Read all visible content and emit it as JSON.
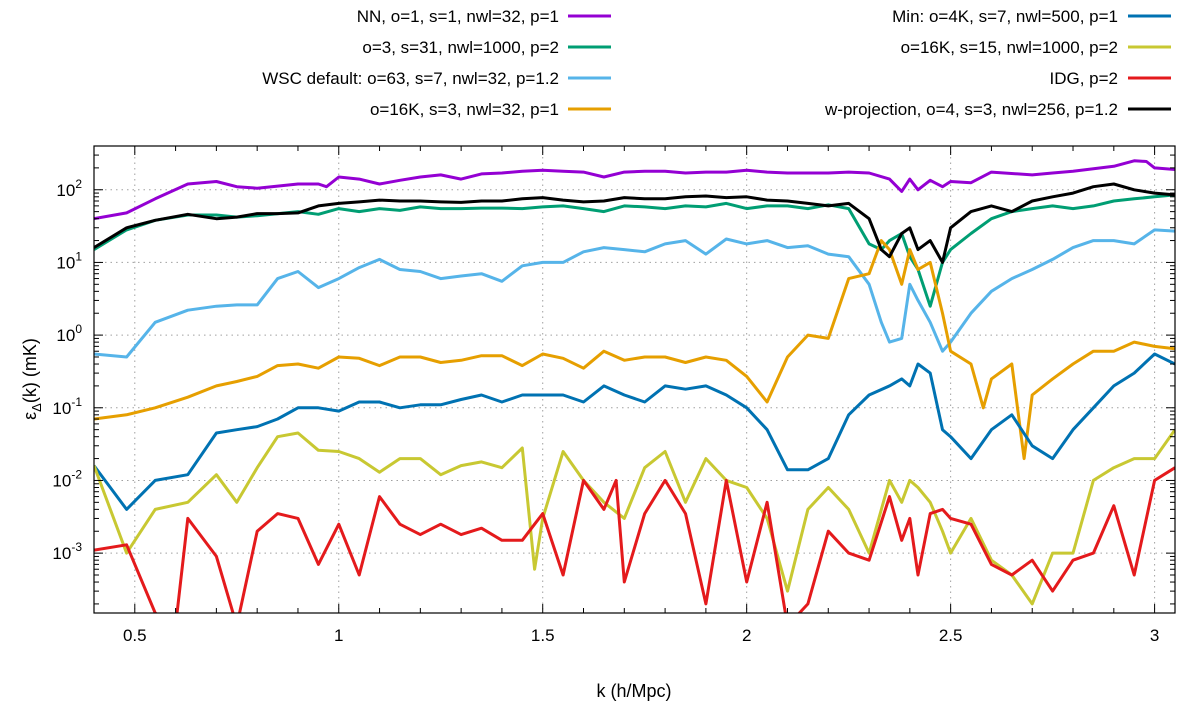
{
  "chart_data": {
    "type": "line",
    "xlabel": "k (h/Mpc)",
    "ylabel": "ε_Δ(k) (mK)",
    "ylabel_main": "ε",
    "ylabel_sub": "Δ",
    "ylabel_rest": "(k) (mK)",
    "xlim": [
      0.4,
      3.05
    ],
    "ylim": [
      0.00015,
      400
    ],
    "yscale": "log",
    "grid": true,
    "x_ticks": [
      0.5,
      1,
      1.5,
      2,
      2.5,
      3
    ],
    "x_tick_labels": [
      "0.5",
      "1",
      "1.5",
      "2",
      "2.5",
      "3"
    ],
    "y_ticks": [
      0.001,
      0.01,
      0.1,
      1,
      10,
      100
    ],
    "y_tick_labels": [
      {
        "base": "10",
        "exp": "-3"
      },
      {
        "base": "10",
        "exp": "-2"
      },
      {
        "base": "10",
        "exp": "-1"
      },
      {
        "base": "10",
        "exp": "0"
      },
      {
        "base": "10",
        "exp": "1"
      },
      {
        "base": "10",
        "exp": "2"
      }
    ],
    "series": [
      {
        "name": "NN, o=1, s=1, nwl=32, p=1",
        "color": "#9400d3",
        "x": [
          0.4,
          0.48,
          0.55,
          0.63,
          0.7,
          0.75,
          0.8,
          0.9,
          0.95,
          0.97,
          1.0,
          1.05,
          1.1,
          1.15,
          1.2,
          1.25,
          1.3,
          1.35,
          1.4,
          1.45,
          1.5,
          1.55,
          1.6,
          1.65,
          1.7,
          1.75,
          1.8,
          1.85,
          1.9,
          1.95,
          2.0,
          2.05,
          2.1,
          2.15,
          2.2,
          2.25,
          2.3,
          2.35,
          2.38,
          2.4,
          2.42,
          2.45,
          2.48,
          2.5,
          2.55,
          2.6,
          2.7,
          2.75,
          2.8,
          2.85,
          2.9,
          2.95,
          2.98,
          3.0,
          3.05
        ],
        "y": [
          40,
          48,
          75,
          120,
          130,
          110,
          105,
          120,
          120,
          110,
          150,
          140,
          120,
          135,
          150,
          160,
          140,
          165,
          170,
          180,
          185,
          180,
          175,
          150,
          175,
          180,
          180,
          170,
          175,
          175,
          185,
          175,
          170,
          170,
          170,
          175,
          170,
          140,
          95,
          140,
          100,
          135,
          110,
          130,
          125,
          175,
          160,
          170,
          180,
          195,
          210,
          250,
          245,
          200,
          190
        ]
      },
      {
        "name": "o=3, s=31, nwl=1000, p=2",
        "color": "#009e73",
        "x": [
          0.4,
          0.48,
          0.55,
          0.63,
          0.7,
          0.75,
          0.8,
          0.9,
          0.95,
          1.0,
          1.05,
          1.1,
          1.15,
          1.2,
          1.25,
          1.3,
          1.35,
          1.4,
          1.45,
          1.5,
          1.55,
          1.6,
          1.65,
          1.7,
          1.75,
          1.8,
          1.85,
          1.9,
          1.95,
          2.0,
          2.05,
          2.1,
          2.15,
          2.2,
          2.25,
          2.3,
          2.33,
          2.35,
          2.38,
          2.4,
          2.42,
          2.45,
          2.48,
          2.5,
          2.55,
          2.6,
          2.65,
          2.7,
          2.75,
          2.8,
          2.85,
          2.9,
          2.95,
          3.0,
          3.05
        ],
        "y": [
          15,
          28,
          38,
          45,
          45,
          42,
          44,
          50,
          46,
          55,
          50,
          55,
          52,
          58,
          55,
          55,
          56,
          56,
          55,
          58,
          60,
          55,
          50,
          60,
          58,
          55,
          60,
          58,
          65,
          55,
          60,
          60,
          55,
          62,
          55,
          18,
          15,
          20,
          25,
          12,
          8,
          2.5,
          10,
          15,
          25,
          40,
          50,
          55,
          60,
          55,
          60,
          70,
          75,
          80,
          85
        ]
      },
      {
        "name": "WSC default: o=63, s=7, nwl=32, p=1.2",
        "color": "#56b4e9",
        "x": [
          0.4,
          0.48,
          0.55,
          0.63,
          0.7,
          0.75,
          0.8,
          0.85,
          0.9,
          0.95,
          1.0,
          1.05,
          1.1,
          1.15,
          1.2,
          1.25,
          1.3,
          1.35,
          1.4,
          1.45,
          1.5,
          1.55,
          1.6,
          1.65,
          1.7,
          1.75,
          1.8,
          1.85,
          1.9,
          1.95,
          2.0,
          2.05,
          2.1,
          2.15,
          2.2,
          2.25,
          2.3,
          2.33,
          2.35,
          2.38,
          2.4,
          2.42,
          2.45,
          2.48,
          2.5,
          2.55,
          2.6,
          2.65,
          2.7,
          2.75,
          2.8,
          2.85,
          2.9,
          2.95,
          3.0,
          3.05
        ],
        "y": [
          0.55,
          0.5,
          1.5,
          2.2,
          2.5,
          2.6,
          2.6,
          6,
          7.5,
          4.5,
          6,
          8.5,
          11,
          8,
          7.5,
          6,
          6.5,
          7,
          5.5,
          9,
          10,
          10,
          14,
          16,
          15,
          14,
          18,
          20,
          13,
          21,
          18,
          20,
          16,
          17,
          13,
          12,
          5,
          1.5,
          0.8,
          0.9,
          5,
          3,
          1.5,
          0.6,
          0.8,
          2,
          4,
          6,
          8,
          11,
          16,
          20,
          20,
          18,
          28,
          27
        ]
      },
      {
        "name": "o=16K, s=3, nwl=32, p=1",
        "color": "#e69f00",
        "x": [
          0.4,
          0.48,
          0.55,
          0.63,
          0.7,
          0.75,
          0.8,
          0.85,
          0.9,
          0.95,
          1.0,
          1.05,
          1.1,
          1.15,
          1.2,
          1.25,
          1.3,
          1.35,
          1.4,
          1.45,
          1.5,
          1.55,
          1.6,
          1.65,
          1.7,
          1.75,
          1.8,
          1.85,
          1.9,
          1.95,
          2.0,
          2.05,
          2.1,
          2.15,
          2.2,
          2.25,
          2.3,
          2.33,
          2.35,
          2.38,
          2.4,
          2.42,
          2.45,
          2.48,
          2.5,
          2.55,
          2.58,
          2.6,
          2.65,
          2.68,
          2.7,
          2.75,
          2.8,
          2.85,
          2.9,
          2.95,
          3.0,
          3.05
        ],
        "y": [
          0.07,
          0.08,
          0.1,
          0.14,
          0.2,
          0.23,
          0.27,
          0.38,
          0.4,
          0.35,
          0.5,
          0.48,
          0.38,
          0.5,
          0.5,
          0.42,
          0.45,
          0.52,
          0.52,
          0.38,
          0.55,
          0.48,
          0.35,
          0.6,
          0.45,
          0.5,
          0.5,
          0.42,
          0.5,
          0.45,
          0.27,
          0.12,
          0.5,
          1,
          0.9,
          6,
          7,
          20,
          15,
          5,
          15,
          8,
          10,
          2,
          0.6,
          0.4,
          0.1,
          0.25,
          0.4,
          0.02,
          0.15,
          0.25,
          0.4,
          0.6,
          0.6,
          0.8,
          0.7,
          0.65
        ]
      },
      {
        "name": "Min: o=4K, s=7, nwl=500, p=1",
        "color": "#0072b2",
        "x": [
          0.4,
          0.48,
          0.55,
          0.63,
          0.7,
          0.75,
          0.8,
          0.85,
          0.9,
          0.95,
          1.0,
          1.05,
          1.1,
          1.15,
          1.2,
          1.25,
          1.3,
          1.35,
          1.4,
          1.45,
          1.5,
          1.55,
          1.6,
          1.65,
          1.7,
          1.75,
          1.8,
          1.85,
          1.9,
          1.95,
          2.0,
          2.05,
          2.1,
          2.15,
          2.2,
          2.25,
          2.3,
          2.35,
          2.38,
          2.4,
          2.42,
          2.45,
          2.48,
          2.5,
          2.55,
          2.6,
          2.65,
          2.7,
          2.75,
          2.8,
          2.85,
          2.9,
          2.95,
          3.0,
          3.05
        ],
        "y": [
          0.016,
          0.004,
          0.01,
          0.012,
          0.045,
          0.05,
          0.055,
          0.07,
          0.1,
          0.1,
          0.09,
          0.12,
          0.12,
          0.1,
          0.11,
          0.11,
          0.13,
          0.15,
          0.12,
          0.15,
          0.15,
          0.15,
          0.12,
          0.2,
          0.15,
          0.12,
          0.2,
          0.18,
          0.2,
          0.15,
          0.1,
          0.05,
          0.014,
          0.014,
          0.02,
          0.08,
          0.15,
          0.2,
          0.25,
          0.2,
          0.4,
          0.3,
          0.05,
          0.04,
          0.02,
          0.05,
          0.08,
          0.03,
          0.02,
          0.05,
          0.1,
          0.2,
          0.3,
          0.55,
          0.4
        ]
      },
      {
        "name": "o=16K, s=15, nwl=1000, p=2",
        "color": "#c8c832",
        "x": [
          0.4,
          0.48,
          0.55,
          0.63,
          0.7,
          0.75,
          0.8,
          0.85,
          0.9,
          0.95,
          1.0,
          1.05,
          1.1,
          1.15,
          1.2,
          1.25,
          1.3,
          1.35,
          1.4,
          1.45,
          1.48,
          1.5,
          1.55,
          1.6,
          1.65,
          1.7,
          1.75,
          1.8,
          1.85,
          1.9,
          1.95,
          2.0,
          2.05,
          2.1,
          2.15,
          2.2,
          2.25,
          2.3,
          2.35,
          2.38,
          2.4,
          2.42,
          2.45,
          2.48,
          2.5,
          2.55,
          2.6,
          2.65,
          2.7,
          2.75,
          2.8,
          2.85,
          2.9,
          2.95,
          3.0,
          3.05
        ],
        "y": [
          0.016,
          0.001,
          0.004,
          0.005,
          0.012,
          0.005,
          0.015,
          0.04,
          0.045,
          0.026,
          0.025,
          0.02,
          0.013,
          0.02,
          0.02,
          0.012,
          0.016,
          0.018,
          0.015,
          0.028,
          0.0006,
          0.003,
          0.025,
          0.01,
          0.005,
          0.003,
          0.015,
          0.025,
          0.005,
          0.02,
          0.01,
          0.008,
          0.003,
          0.0003,
          0.004,
          0.008,
          0.004,
          0.001,
          0.01,
          0.005,
          0.01,
          0.008,
          0.005,
          0.002,
          0.001,
          0.003,
          0.0008,
          0.0005,
          0.0002,
          0.001,
          0.001,
          0.01,
          0.015,
          0.02,
          0.02,
          0.05
        ]
      },
      {
        "name": "IDG, p=2",
        "color": "#e41a1c",
        "x": [
          0.4,
          0.48,
          0.55,
          0.6,
          0.63,
          0.7,
          0.75,
          0.8,
          0.85,
          0.9,
          0.95,
          1.0,
          1.05,
          1.1,
          1.15,
          1.2,
          1.25,
          1.3,
          1.35,
          1.4,
          1.45,
          1.48,
          1.5,
          1.55,
          1.6,
          1.65,
          1.68,
          1.7,
          1.75,
          1.8,
          1.85,
          1.9,
          1.95,
          2.0,
          2.05,
          2.1,
          2.15,
          2.2,
          2.25,
          2.3,
          2.35,
          2.38,
          2.4,
          2.42,
          2.45,
          2.48,
          2.5,
          2.55,
          2.6,
          2.65,
          2.7,
          2.75,
          2.8,
          2.85,
          2.9,
          2.95,
          3.0,
          3.05
        ],
        "y": [
          0.0011,
          0.0013,
          0.00015,
          0.0001,
          0.003,
          0.0009,
          0.0001,
          0.002,
          0.0035,
          0.003,
          0.0007,
          0.0025,
          0.0005,
          0.006,
          0.0025,
          0.0018,
          0.0025,
          0.0018,
          0.0022,
          0.0015,
          0.0015,
          0.0025,
          0.0035,
          0.0005,
          0.01,
          0.004,
          0.01,
          0.0004,
          0.0035,
          0.01,
          0.0035,
          0.0002,
          0.01,
          0.0004,
          0.005,
          0.0001,
          0.0002,
          0.002,
          0.001,
          0.0008,
          0.006,
          0.0015,
          0.003,
          0.0005,
          0.0035,
          0.004,
          0.003,
          0.0025,
          0.0007,
          0.0005,
          0.0008,
          0.0003,
          0.0008,
          0.001,
          0.0045,
          0.0005,
          0.01,
          0.015
        ]
      },
      {
        "name": "w-projection, o=4, s=3, nwl=256, p=1.2",
        "color": "#000000",
        "x": [
          0.4,
          0.48,
          0.55,
          0.63,
          0.7,
          0.75,
          0.8,
          0.85,
          0.9,
          0.95,
          1.0,
          1.05,
          1.1,
          1.15,
          1.2,
          1.25,
          1.3,
          1.35,
          1.4,
          1.45,
          1.5,
          1.55,
          1.6,
          1.65,
          1.7,
          1.75,
          1.8,
          1.85,
          1.9,
          1.95,
          2.0,
          2.05,
          2.1,
          2.15,
          2.2,
          2.25,
          2.3,
          2.33,
          2.35,
          2.38,
          2.4,
          2.42,
          2.45,
          2.48,
          2.5,
          2.55,
          2.6,
          2.65,
          2.7,
          2.75,
          2.8,
          2.85,
          2.9,
          2.95,
          3.0,
          3.05
        ],
        "y": [
          16,
          30,
          38,
          46,
          40,
          42,
          47,
          47,
          48,
          60,
          65,
          68,
          72,
          70,
          70,
          68,
          67,
          70,
          70,
          75,
          78,
          72,
          68,
          70,
          78,
          75,
          75,
          80,
          82,
          78,
          80,
          72,
          70,
          65,
          60,
          65,
          40,
          15,
          12,
          25,
          30,
          15,
          20,
          10,
          30,
          50,
          60,
          50,
          70,
          80,
          90,
          110,
          120,
          100,
          90,
          85
        ]
      }
    ]
  }
}
